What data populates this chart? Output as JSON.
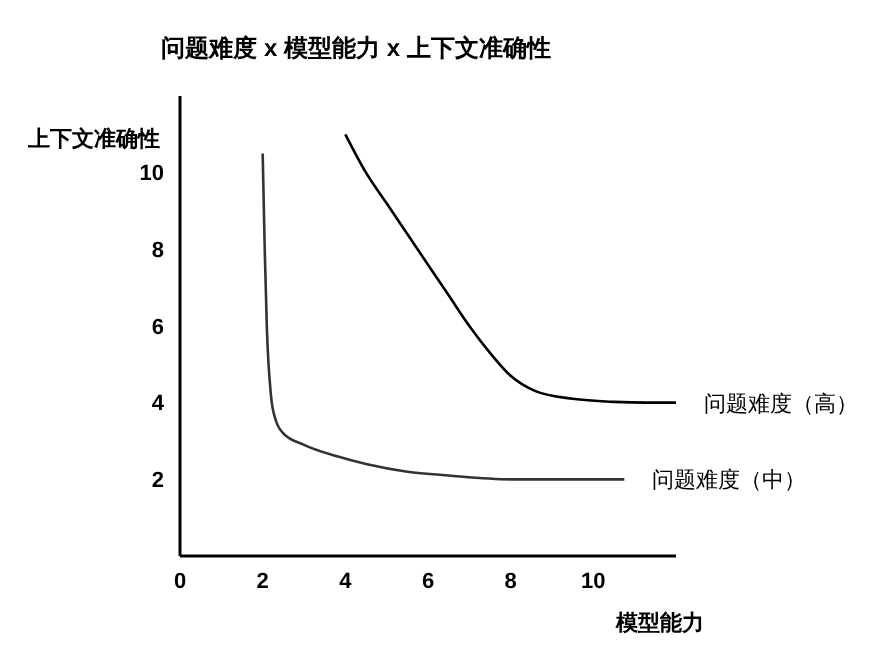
{
  "chart_data": {
    "type": "line",
    "title": "问题难度 x 模型能力 x 上下文准确性",
    "xlabel": "模型能力",
    "ylabel": "上下文准确性",
    "xlim": [
      0,
      12
    ],
    "ylim": [
      0,
      12
    ],
    "xticks": [
      0,
      2,
      4,
      6,
      8,
      10
    ],
    "yticks": [
      2,
      4,
      6,
      8,
      10
    ],
    "grid": false,
    "legend": false,
    "marker": "none",
    "line_style": "solid",
    "series": [
      {
        "name": "问题难度（中）",
        "color": "#333333",
        "x": [
          2.0,
          2.05,
          2.1,
          2.2,
          2.3,
          2.5,
          3.0,
          3.8,
          4.5,
          5.5,
          6.5,
          8.0,
          9.5,
          10.75
        ],
        "values": [
          10.5,
          8.0,
          6.0,
          4.2,
          3.6,
          3.2,
          2.9,
          2.6,
          2.4,
          2.2,
          2.1,
          2.0,
          2.0,
          2.0
        ]
      },
      {
        "name": "问题难度（高）",
        "color": "#000000",
        "x": [
          4.0,
          4.5,
          5.0,
          5.5,
          6.0,
          6.5,
          7.0,
          7.5,
          8.0,
          8.6,
          9.5,
          10.5,
          11.3,
          12.0
        ],
        "values": [
          11.0,
          10.0,
          9.2,
          8.4,
          7.6,
          6.8,
          6.0,
          5.3,
          4.7,
          4.3,
          4.1,
          4.02,
          4.0,
          4.0
        ]
      }
    ]
  }
}
